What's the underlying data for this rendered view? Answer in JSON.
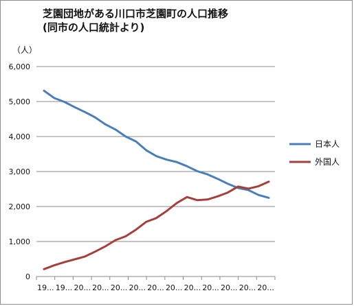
{
  "chart_data": {
    "type": "line",
    "title_line1": "芝園団地がある川口市芝園町の人口推移",
    "title_line2": "(同市の人口統計より)",
    "y_unit": "（人）",
    "ylim": [
      0,
      6000
    ],
    "y_ticks": [
      "0",
      "1,000",
      "2,000",
      "3,000",
      "4,000",
      "5,000",
      "6,000"
    ],
    "y_tick_values": [
      0,
      1000,
      2000,
      3000,
      4000,
      5000,
      6000
    ],
    "grid": true,
    "legend_position": "right",
    "x_tick_labels": [
      "19...",
      "19...",
      "20...",
      "20...",
      "20...",
      "20...",
      "20...",
      "20...",
      "20...",
      "20...",
      "20...",
      "20...",
      "20..."
    ],
    "series": [
      {
        "name": "日本人",
        "color": "#4a7ebb",
        "values": [
          5310,
          5100,
          4990,
          4840,
          4700,
          4550,
          4350,
          4200,
          4000,
          3860,
          3610,
          3440,
          3340,
          3270,
          3150,
          3010,
          2920,
          2790,
          2650,
          2530,
          2470,
          2330,
          2250
        ]
      },
      {
        "name": "外国人",
        "color": "#a63f3b",
        "values": [
          210,
          320,
          410,
          490,
          570,
          710,
          860,
          1040,
          1150,
          1340,
          1560,
          1670,
          1870,
          2100,
          2270,
          2180,
          2200,
          2290,
          2400,
          2570,
          2510,
          2580,
          2710
        ]
      }
    ]
  }
}
